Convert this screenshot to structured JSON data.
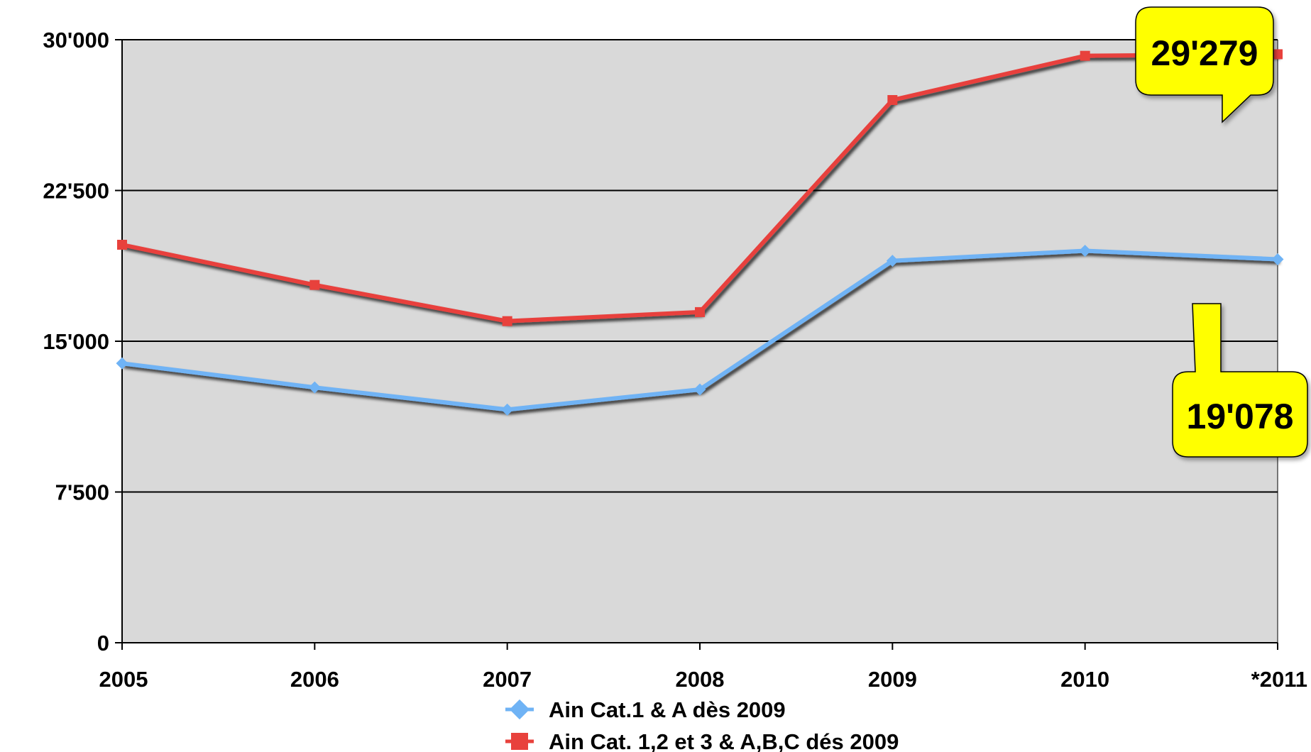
{
  "chart_data": {
    "type": "line",
    "categories": [
      "2005",
      "2006",
      "2007",
      "2008",
      "2009",
      "2010",
      "*2011"
    ],
    "y_ticks": [
      "0",
      "7'500",
      "15'000",
      "22'500",
      "30'000"
    ],
    "ylim": [
      0,
      30000
    ],
    "grid": true,
    "legend_placement": "bottom-center",
    "series": [
      {
        "name": "Ain Cat.1 & A dès 2009",
        "color": "#6fb3f5",
        "marker": "diamond",
        "values": [
          13900,
          12700,
          11600,
          12600,
          19000,
          19500,
          19078
        ]
      },
      {
        "name": "Ain Cat. 1,2 et 3 & A,B,C dés 2009",
        "color": "#e8413c",
        "marker": "square",
        "values": [
          19800,
          17800,
          16000,
          16450,
          27000,
          29200,
          29279
        ]
      }
    ],
    "annotations": [
      {
        "text": "29'279",
        "series": 1,
        "color": "#ffff00"
      },
      {
        "text": "19'078",
        "series": 0,
        "color": "#ffff00"
      }
    ]
  },
  "colors": {
    "plot_background": "#d9d9d9",
    "gridline": "#000000",
    "callout_fill": "#ffff00"
  }
}
